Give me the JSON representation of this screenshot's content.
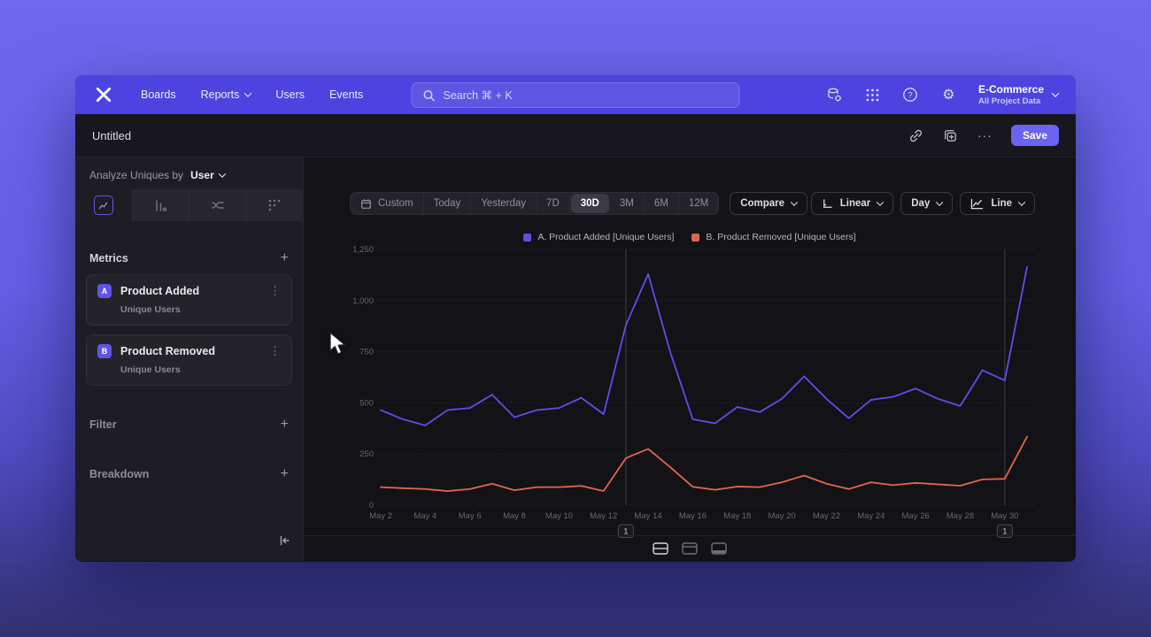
{
  "navbar": {
    "brand": "Mixpanel",
    "items": [
      {
        "label": "Boards"
      },
      {
        "label": "Reports"
      },
      {
        "label": "Users"
      },
      {
        "label": "Events"
      }
    ],
    "search_placeholder": "Search  ⌘ + K",
    "project_name": "E-Commerce",
    "project_subtitle": "All Project Data",
    "help_glyph": "?",
    "gear_glyph": "⚙"
  },
  "titlebar": {
    "title": "Untitled",
    "ellipsis_glyph": "···",
    "save_label": "Save"
  },
  "sidebar": {
    "analyze_label": "Analyze Uniques by",
    "analyze_value": "User",
    "metrics_header": "Metrics",
    "plus_glyph": "+",
    "kebab_glyph": "⋮",
    "metrics": [
      {
        "badge": "A",
        "name": "Product Added",
        "subtitle": "Unique Users"
      },
      {
        "badge": "B",
        "name": "Product Removed",
        "subtitle": "Unique Users"
      }
    ],
    "filter_label": "Filter",
    "breakdown_label": "Breakdown"
  },
  "toolbar": {
    "ranges": [
      "Custom",
      "Today",
      "Yesterday",
      "7D",
      "30D",
      "3M",
      "6M",
      "12M"
    ],
    "selected_range": "30D",
    "compare_label": "Compare",
    "scale_label": "Linear",
    "interval_label": "Day",
    "chart_type_label": "Line"
  },
  "chart_data": {
    "type": "line",
    "x": [
      "May 2",
      "May 3",
      "May 4",
      "May 5",
      "May 6",
      "May 7",
      "May 8",
      "May 9",
      "May 10",
      "May 11",
      "May 12",
      "May 13",
      "May 14",
      "May 15",
      "May 16",
      "May 17",
      "May 18",
      "May 19",
      "May 20",
      "May 21",
      "May 22",
      "May 23",
      "May 24",
      "May 25",
      "May 26",
      "May 27",
      "May 28",
      "May 29",
      "May 30",
      "May 31"
    ],
    "x_ticks": [
      "May 2",
      "May 4",
      "May 6",
      "May 8",
      "May 10",
      "May 12",
      "May 14",
      "May 16",
      "May 18",
      "May 20",
      "May 22",
      "May 24",
      "May 26",
      "May 28",
      "May 30"
    ],
    "series": [
      {
        "name": "A. Product Added [Unique Users]",
        "color": "#5D4FE8",
        "values": [
          465,
          420,
          390,
          465,
          475,
          540,
          430,
          465,
          475,
          525,
          445,
          880,
          1130,
          745,
          420,
          400,
          480,
          455,
          520,
          630,
          520,
          425,
          515,
          530,
          570,
          520,
          485,
          660,
          610,
          1165
        ]
      },
      {
        "name": "B. Product Removed [Unique Users]",
        "color": "#E0664C",
        "values": [
          88,
          83,
          79,
          69,
          79,
          105,
          73,
          88,
          88,
          94,
          69,
          230,
          275,
          185,
          90,
          75,
          91,
          88,
          112,
          145,
          105,
          79,
          112,
          98,
          109,
          102,
          95,
          126,
          129,
          335
        ]
      }
    ],
    "ylim": [
      0,
      1250
    ],
    "yticks": [
      0,
      250,
      500,
      750,
      1000,
      1250
    ],
    "ytick_labels": [
      "0",
      "250",
      "500",
      "750",
      "1,000",
      "1,250"
    ],
    "annotations": [
      {
        "x": "May 13",
        "label": "1"
      },
      {
        "x": "May 30",
        "label": "1"
      }
    ],
    "grid": true,
    "legend_position": "top"
  }
}
